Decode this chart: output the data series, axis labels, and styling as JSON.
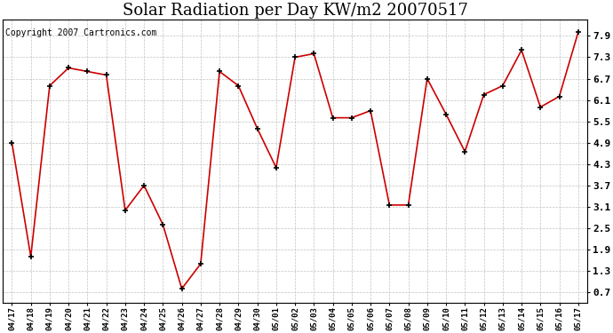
{
  "title": "Solar Radiation per Day KW/m2 20070517",
  "copyright": "Copyright 2007 Cartronics.com",
  "x_labels": [
    "04/17",
    "04/18",
    "04/19",
    "04/20",
    "04/21",
    "04/22",
    "04/23",
    "04/24",
    "04/25",
    "04/26",
    "04/27",
    "04/28",
    "04/29",
    "04/30",
    "05/01",
    "05/02",
    "05/03",
    "05/04",
    "05/05",
    "05/06",
    "05/07",
    "05/08",
    "05/09",
    "05/10",
    "05/11",
    "05/12",
    "05/13",
    "05/14",
    "05/15",
    "05/16",
    "05/17"
  ],
  "y_values": [
    4.9,
    1.7,
    6.5,
    7.0,
    6.9,
    6.8,
    3.0,
    3.7,
    2.6,
    0.8,
    1.5,
    6.9,
    6.5,
    5.3,
    4.2,
    7.3,
    7.4,
    5.6,
    5.6,
    5.8,
    3.15,
    3.15,
    6.7,
    5.7,
    4.65,
    6.25,
    6.5,
    7.5,
    5.9,
    6.2,
    8.0
  ],
  "line_color": "#cc0000",
  "marker_color": "#000000",
  "bg_color": "#ffffff",
  "plot_bg_color": "#ffffff",
  "grid_color": "#bbbbbb",
  "title_fontsize": 13,
  "copyright_fontsize": 7,
  "yticks": [
    0.7,
    1.3,
    1.9,
    2.5,
    3.1,
    3.7,
    4.3,
    4.9,
    5.5,
    6.1,
    6.7,
    7.3,
    7.9
  ],
  "ylim": [
    0.4,
    8.35
  ],
  "xlim": [
    -0.5,
    30.5
  ]
}
